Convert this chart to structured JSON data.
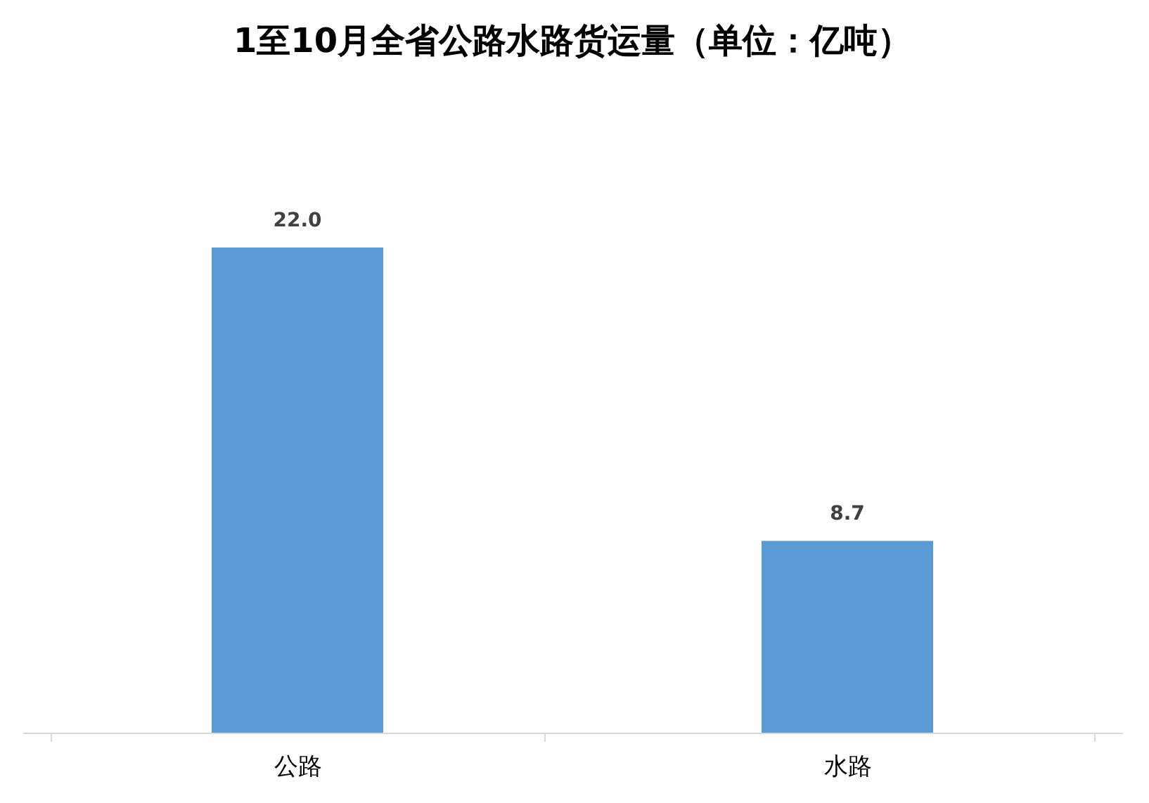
{
  "chart_data": {
    "type": "bar",
    "title": "1至10月全省公路水路货运量（单位：亿吨）",
    "categories": [
      "公路",
      "水路"
    ],
    "values": [
      22.0,
      8.7
    ],
    "value_labels": [
      "22.0",
      "8.7"
    ],
    "color": "#5b9bd5"
  }
}
